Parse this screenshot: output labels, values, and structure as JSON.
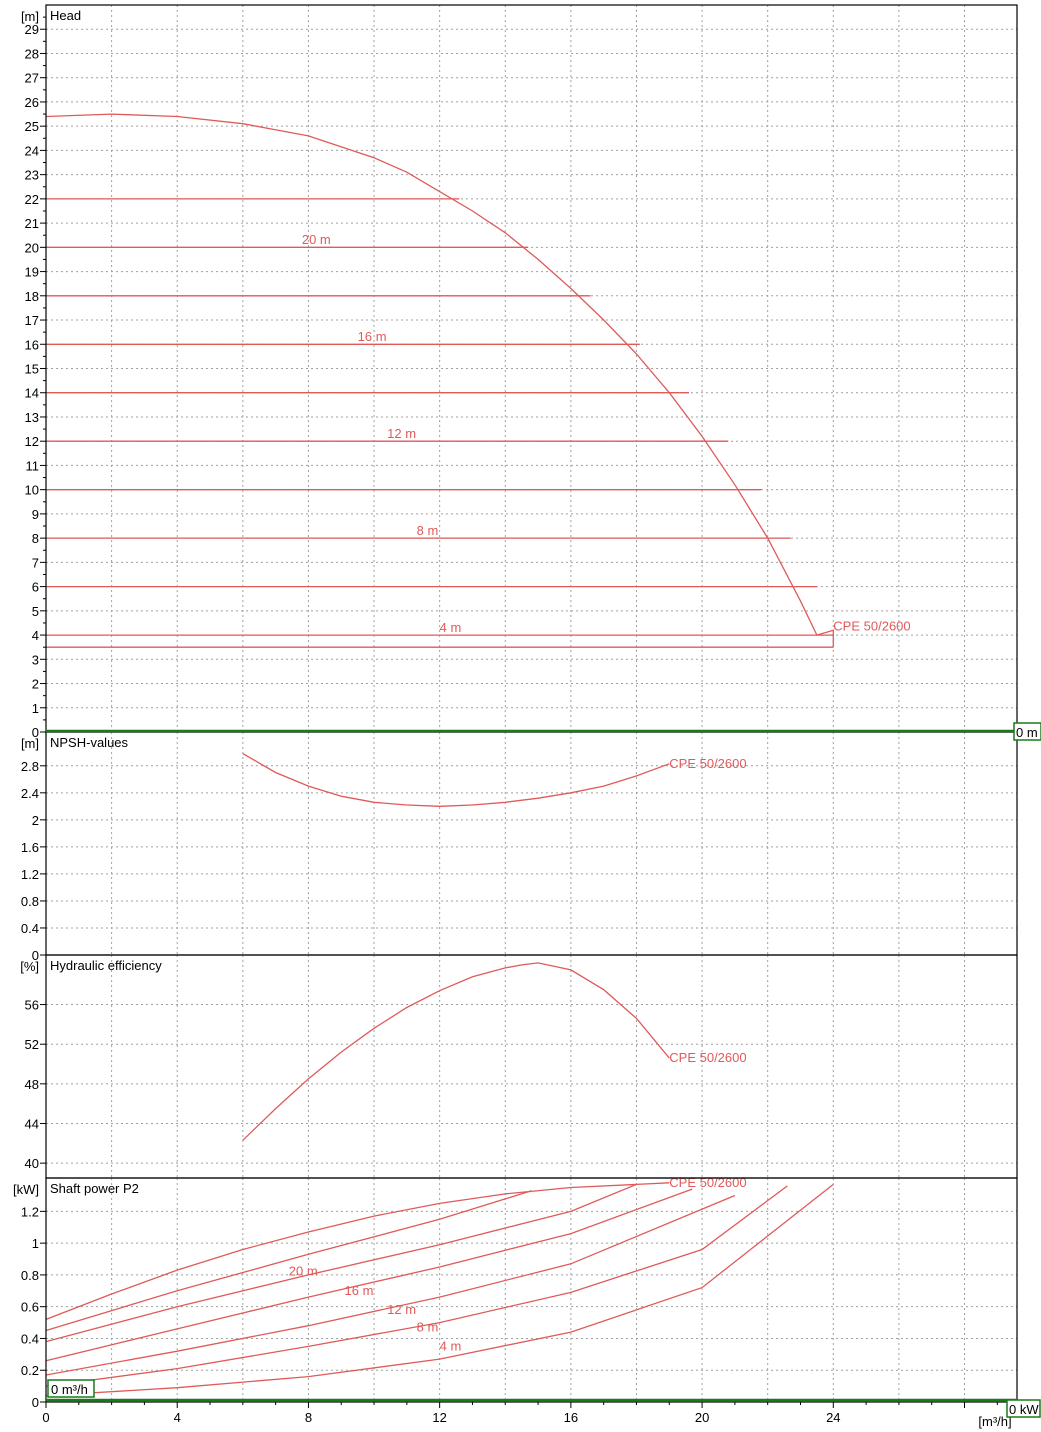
{
  "chart_data": [
    {
      "type": "line",
      "title": "Head",
      "unit": "[m]",
      "ylim": [
        0,
        30
      ],
      "yticks": [
        0,
        1,
        2,
        3,
        4,
        5,
        6,
        7,
        8,
        9,
        10,
        11,
        12,
        13,
        14,
        15,
        16,
        17,
        18,
        19,
        20,
        21,
        22,
        23,
        24,
        25,
        26,
        27,
        28,
        29
      ],
      "xlim": [
        0,
        29.6
      ],
      "grid": true,
      "marker_label": "0 m",
      "series": [
        {
          "name": "CPE 50/2600",
          "x": [
            0,
            2,
            4,
            6,
            8,
            10,
            11,
            12,
            13,
            14,
            15,
            16,
            17,
            18,
            19,
            20,
            21,
            22,
            23,
            23.5,
            24,
            24,
            24
          ],
          "y": [
            25.4,
            25.5,
            25.4,
            25.1,
            24.6,
            23.7,
            23.1,
            22.3,
            21.5,
            20.6,
            19.5,
            18.3,
            17.0,
            15.6,
            14.0,
            12.2,
            10.2,
            8.0,
            5.4,
            4.0,
            4.2,
            4.0,
            3.5
          ]
        },
        {
          "name": "",
          "x": [
            0,
            12.6
          ],
          "y": [
            22,
            22
          ]
        },
        {
          "name": "",
          "x": [
            0,
            14.7
          ],
          "y": [
            20,
            20
          ]
        },
        {
          "name": "",
          "x": [
            0,
            16.6
          ],
          "y": [
            18,
            18
          ]
        },
        {
          "name": "",
          "x": [
            0,
            18.1
          ],
          "y": [
            16,
            16
          ]
        },
        {
          "name": "",
          "x": [
            0,
            19.6
          ],
          "y": [
            14,
            14
          ]
        },
        {
          "name": "",
          "x": [
            0,
            20.8
          ],
          "y": [
            12,
            12
          ]
        },
        {
          "name": "",
          "x": [
            0,
            21.8
          ],
          "y": [
            10,
            10
          ]
        },
        {
          "name": "",
          "x": [
            0,
            22.7
          ],
          "y": [
            8,
            8
          ]
        },
        {
          "name": "",
          "x": [
            0,
            23.5
          ],
          "y": [
            6,
            6
          ]
        },
        {
          "name": "",
          "x": [
            0,
            24
          ],
          "y": [
            4,
            4
          ]
        },
        {
          "name": "",
          "x": [
            0,
            24
          ],
          "y": [
            3.5,
            3.5
          ]
        }
      ],
      "annotations": [
        {
          "text": "CPE 50/2600",
          "x": 24,
          "y": 4.35
        },
        {
          "text": "20 m",
          "x": 7.8,
          "y": 20.3
        },
        {
          "text": "16 m",
          "x": 9.5,
          "y": 16.3
        },
        {
          "text": "12 m",
          "x": 10.4,
          "y": 12.3
        },
        {
          "text": "8 m",
          "x": 11.3,
          "y": 8.3
        },
        {
          "text": "4 m",
          "x": 12.0,
          "y": 4.3
        }
      ]
    },
    {
      "type": "line",
      "title": "NPSH-values",
      "unit": "[m]",
      "ylim": [
        0,
        3.3
      ],
      "yticks": [
        0,
        0.4,
        0.8,
        1.2,
        1.6,
        2,
        2.4,
        2.8
      ],
      "xlim": [
        0,
        29.6
      ],
      "grid": true,
      "series": [
        {
          "name": "CPE 50/2600",
          "x": [
            6,
            7,
            8,
            9,
            10,
            11,
            12,
            13,
            14,
            15,
            16,
            17,
            18,
            19
          ],
          "y": [
            2.98,
            2.7,
            2.5,
            2.35,
            2.26,
            2.22,
            2.2,
            2.22,
            2.26,
            2.32,
            2.4,
            2.5,
            2.65,
            2.83
          ]
        }
      ],
      "annotations": [
        {
          "text": "CPE 50/2600",
          "x": 19,
          "y": 2.83
        }
      ]
    },
    {
      "type": "line",
      "title": "Hydraulic efficiency",
      "unit": "[%]",
      "ylim": [
        38.5,
        61
      ],
      "yticks": [
        40,
        44,
        48,
        52,
        56
      ],
      "xlim": [
        0,
        29.6
      ],
      "grid": true,
      "series": [
        {
          "name": "CPE 50/2600",
          "x": [
            6,
            7,
            8,
            9,
            10,
            11,
            12,
            13,
            14,
            14.5,
            15,
            16,
            17,
            18,
            19
          ],
          "y": [
            42.3,
            45.5,
            48.5,
            51.2,
            53.6,
            55.7,
            57.4,
            58.8,
            59.7,
            60.0,
            60.2,
            59.5,
            57.5,
            54.6,
            50.6
          ]
        }
      ],
      "annotations": [
        {
          "text": "CPE 50/2600",
          "x": 19,
          "y": 50.6
        }
      ]
    },
    {
      "type": "line",
      "title": "Shaft power P2",
      "unit": "[kW]",
      "ylim": [
        0,
        1.41
      ],
      "yticks": [
        0,
        0.2,
        0.4,
        0.6,
        0.8,
        1,
        1.2
      ],
      "xlim": [
        0,
        29.6
      ],
      "xticks": [
        0,
        4,
        8,
        12,
        16,
        20,
        24
      ],
      "xunit": "[m³/h]",
      "grid": true,
      "marker_label_x": "0 m³/h",
      "marker_label_p": "0 kW",
      "series": [
        {
          "name": "CPE 50/2600",
          "x": [
            0,
            2,
            4,
            6,
            8,
            10,
            12,
            14,
            16,
            18,
            19
          ],
          "y": [
            0.52,
            0.68,
            0.83,
            0.96,
            1.07,
            1.17,
            1.25,
            1.31,
            1.35,
            1.37,
            1.38
          ]
        },
        {
          "name": "",
          "x": [
            0,
            4,
            8,
            12,
            14.8
          ],
          "y": [
            0.45,
            0.7,
            0.93,
            1.15,
            1.33
          ]
        },
        {
          "name": "",
          "x": [
            0,
            4,
            8,
            12,
            16,
            18
          ],
          "y": [
            0.38,
            0.6,
            0.8,
            0.99,
            1.2,
            1.37
          ]
        },
        {
          "name": "",
          "x": [
            0,
            4,
            8,
            12,
            16,
            19.7
          ],
          "y": [
            0.26,
            0.46,
            0.66,
            0.85,
            1.06,
            1.34
          ]
        },
        {
          "name": "",
          "x": [
            0,
            4,
            8,
            12,
            16,
            21
          ],
          "y": [
            0.17,
            0.32,
            0.48,
            0.66,
            0.87,
            1.3
          ]
        },
        {
          "name": "",
          "x": [
            0,
            4,
            8,
            12,
            16,
            20,
            22.6
          ],
          "y": [
            0.1,
            0.21,
            0.35,
            0.5,
            0.69,
            0.96,
            1.36
          ]
        },
        {
          "name": "",
          "x": [
            0,
            4,
            8,
            12,
            16,
            20,
            24
          ],
          "y": [
            0.04,
            0.09,
            0.16,
            0.27,
            0.44,
            0.72,
            1.37
          ]
        }
      ],
      "annotations": [
        {
          "text": "CPE 50/2600",
          "x": 19,
          "y": 1.38
        },
        {
          "text": "20 m",
          "x": 7.4,
          "y": 0.82
        },
        {
          "text": "16 m",
          "x": 9.1,
          "y": 0.7
        },
        {
          "text": "12 m",
          "x": 10.4,
          "y": 0.58
        },
        {
          "text": "8 m",
          "x": 11.3,
          "y": 0.47
        },
        {
          "text": "4 m",
          "x": 12.0,
          "y": 0.35
        }
      ]
    }
  ]
}
